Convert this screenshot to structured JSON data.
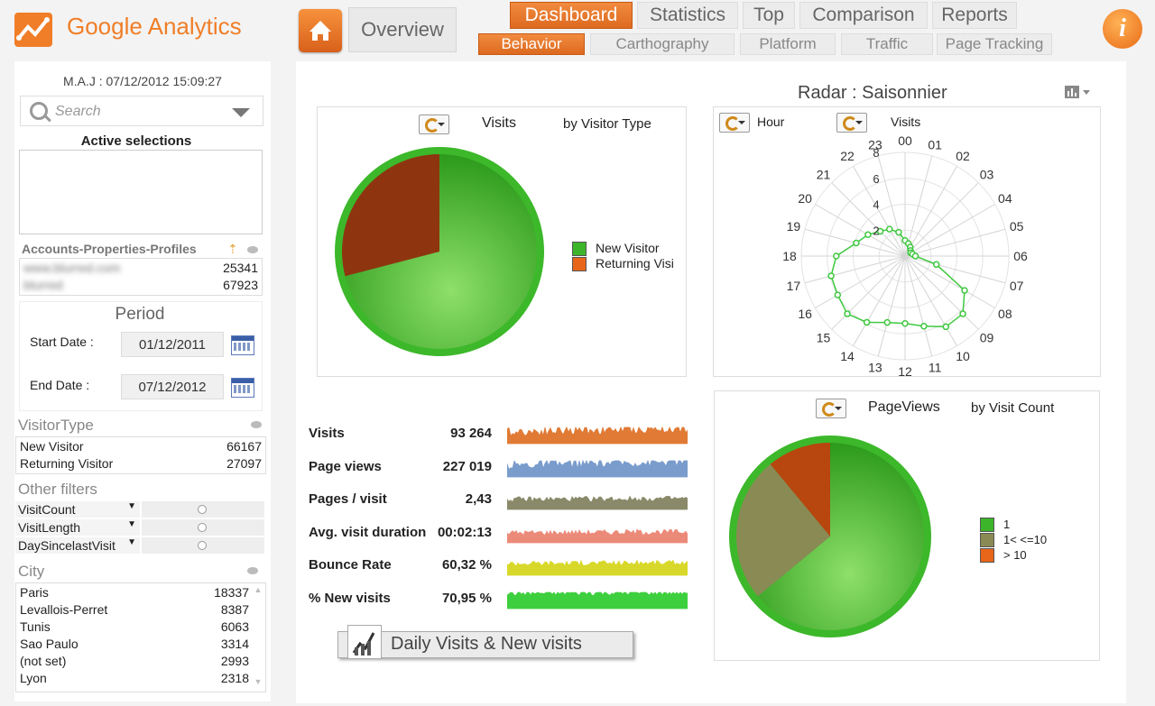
{
  "app": {
    "title": "Google Analytics"
  },
  "header": {
    "overview_label": "Overview",
    "tabs_top": [
      {
        "label": "Dashboard",
        "active": true
      },
      {
        "label": "Statistics",
        "active": false
      },
      {
        "label": "Top",
        "active": false
      },
      {
        "label": "Comparison",
        "active": false
      },
      {
        "label": "Reports",
        "active": false
      }
    ],
    "tabs_sub": [
      {
        "label": "Behavior",
        "active": true
      },
      {
        "label": "Carthography",
        "active": false
      },
      {
        "label": "Platform",
        "active": false
      },
      {
        "label": "Traffic",
        "active": false
      },
      {
        "label": "Page Tracking",
        "active": false
      }
    ],
    "info_label": "i"
  },
  "sidebar": {
    "maj": "M.A.J : 07/12/2012 15:09:27",
    "search_placeholder": "Search",
    "active_selections_title": "Active selections",
    "accounts_title": "Accounts-Properties-Profiles",
    "accounts": [
      {
        "name": "www.blurred.com",
        "value": "25341"
      },
      {
        "name": "blurred",
        "value": "67923"
      }
    ],
    "period": {
      "title": "Period",
      "start_label": "Start Date :",
      "start_value": "01/12/2011",
      "end_label": "End Date :",
      "end_value": "07/12/2012"
    },
    "visitor_type": {
      "title": "VisitorType",
      "rows": [
        {
          "name": "New Visitor",
          "value": "66167"
        },
        {
          "name": "Returning Visitor",
          "value": "27097"
        }
      ]
    },
    "other_filters": {
      "title": "Other filters",
      "items": [
        "VisitCount",
        "VisitLength",
        "DaySincelastVisit"
      ]
    },
    "city": {
      "title": "City",
      "rows": [
        {
          "name": "Paris",
          "value": "18337"
        },
        {
          "name": "Levallois-Perret",
          "value": "8387"
        },
        {
          "name": "Tunis",
          "value": "6063"
        },
        {
          "name": "Sao Paulo",
          "value": "3314"
        },
        {
          "name": "(not set)",
          "value": "2993"
        },
        {
          "name": "Lyon",
          "value": "2318"
        }
      ]
    }
  },
  "pie1": {
    "measure": "Visits",
    "dimension": "by Visitor Type",
    "legend": [
      "New Visitor",
      "Returning Visi"
    ],
    "colors": [
      "#3db52a",
      "#e8661a"
    ]
  },
  "radar": {
    "title": "Radar : Saisonnier",
    "dimension": "Hour",
    "measure": "Visits",
    "hours": [
      "00",
      "01",
      "02",
      "03",
      "04",
      "05",
      "06",
      "07",
      "08",
      "09",
      "10",
      "11",
      "12",
      "13",
      "14",
      "15",
      "16",
      "17",
      "18",
      "19",
      "20",
      "21",
      "22",
      "23"
    ],
    "scale": [
      "2",
      "4",
      "6",
      "8"
    ]
  },
  "pie2": {
    "measure": "PageViews",
    "dimension": "by Visit Count",
    "legend": [
      "1",
      "1< <=10",
      "> 10"
    ],
    "colors": [
      "#3db52a",
      "#8a8a55",
      "#e8661a"
    ]
  },
  "kpis": [
    {
      "label": "Visits",
      "value": "93 264",
      "color": "#e07a35"
    },
    {
      "label": "Page views",
      "value": "227 019",
      "color": "#7a9ccc"
    },
    {
      "label": "Pages / visit",
      "value": "2,43",
      "color": "#8a8a6a"
    },
    {
      "label": "Avg. visit duration",
      "value": "00:02:13",
      "color": "#ec8a7a"
    },
    {
      "label": "Bounce Rate",
      "value": "60,32 %",
      "color": "#d8d82a"
    },
    {
      "label": "% New visits",
      "value": "70,95 %",
      "color": "#3ecf3e"
    }
  ],
  "daily_button": "Daily Visits & New visits",
  "chart_data": [
    {
      "type": "pie",
      "title": "Visits by Visitor Type",
      "categories": [
        "New Visitor",
        "Returning Visitor"
      ],
      "values": [
        66167,
        27097
      ]
    },
    {
      "type": "pie",
      "title": "PageViews by Visit Count",
      "categories": [
        "1",
        "1< <=10",
        "> 10"
      ],
      "values": [
        64,
        25,
        11
      ]
    },
    {
      "type": "line",
      "title": "Radar : Saisonnier",
      "x": [
        "00",
        "01",
        "02",
        "03",
        "04",
        "05",
        "06",
        "07",
        "08",
        "09",
        "10",
        "11",
        "12",
        "13",
        "14",
        "15",
        "16",
        "17",
        "18",
        "19",
        "20",
        "21",
        "22",
        "23"
      ],
      "series": [
        {
          "name": "Visits",
          "values": [
            1.2,
            1.0,
            0.8,
            0.6,
            0.5,
            0.6,
            0.8,
            2.5,
            5.3,
            6.3,
            6.3,
            5.6,
            5.2,
            5.3,
            5.9,
            6.3,
            6.0,
            5.9,
            5.3,
            3.9,
            3.3,
            2.7,
            2.4,
            1.9
          ]
        }
      ],
      "ylim": [
        0,
        8
      ]
    }
  ]
}
